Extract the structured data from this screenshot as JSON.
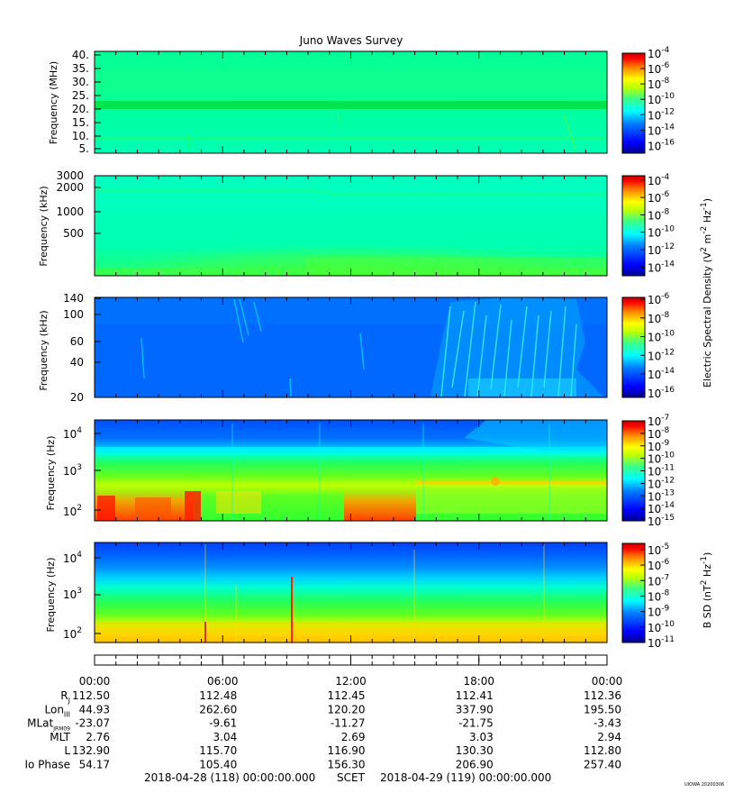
{
  "chart_data": {
    "type": "heatmap",
    "title": "Juno Waves Survey",
    "time_axis": {
      "ticks": [
        "00:00",
        "06:00",
        "12:00",
        "18:00",
        "00:00"
      ],
      "range_hours": [
        0,
        24
      ]
    },
    "panels": [
      {
        "id": "p1",
        "ylabel": "Frequency (MHz)",
        "y_scale": "linear",
        "ylim": [
          3.5,
          41
        ],
        "y_ticks": [
          "40.",
          "35.",
          "30.",
          "25.",
          "20.",
          "15.",
          "10.",
          "5."
        ],
        "colorbar": {
          "tick_exponents": [
            "-4",
            "-6",
            "-8",
            "-10",
            "-12",
            "-14",
            "-16"
          ],
          "range_log10": [
            -17,
            -4
          ]
        }
      },
      {
        "id": "p2",
        "ylabel": "Frequency (kHz)",
        "y_scale": "log",
        "ylim": [
          140,
          3000
        ],
        "y_ticks": [
          "3000",
          "2000",
          "1000",
          "500"
        ],
        "colorbar": {
          "tick_exponents": [
            "-4",
            "-6",
            "-8",
            "-10",
            "-12",
            "-14"
          ],
          "range_log10": [
            -15,
            -3.5
          ]
        }
      },
      {
        "id": "p3",
        "ylabel": "Frequency (kHz)",
        "y_scale": "log",
        "ylim": [
          20,
          140
        ],
        "y_ticks": [
          "140",
          "100",
          "60",
          "40",
          "20"
        ],
        "colorbar": {
          "tick_exponents": [
            "-6",
            "-8",
            "-10",
            "-12",
            "-14",
            "-16"
          ],
          "range_log10": [
            -16.5,
            -5.8
          ]
        }
      },
      {
        "id": "p4",
        "ylabel": "Frequency (Hz)",
        "y_scale": "log",
        "ylim": [
          50,
          20000
        ],
        "y_ticks": [
          {
            "base": "10",
            "exp": "4"
          },
          {
            "base": "10",
            "exp": "3"
          },
          {
            "base": "10",
            "exp": "2"
          }
        ],
        "colorbar": {
          "tick_exponents": [
            "-7",
            "-8",
            "-9",
            "-10",
            "-11",
            "-12",
            "-13",
            "-14",
            "-15"
          ],
          "range_log10": [
            -15,
            -7
          ]
        }
      },
      {
        "id": "p5",
        "ylabel": "Frequency (Hz)",
        "y_scale": "log",
        "ylim": [
          50,
          20000
        ],
        "y_ticks": [
          {
            "base": "10",
            "exp": "4"
          },
          {
            "base": "10",
            "exp": "3"
          },
          {
            "base": "10",
            "exp": "2"
          }
        ],
        "colorbar": {
          "tick_exponents": [
            "-5",
            "-6",
            "-7",
            "-8",
            "-9",
            "-10",
            "-11"
          ],
          "range_log10": [
            -11,
            -4.6
          ]
        }
      }
    ],
    "colorbar_label_electric": {
      "text": "Electric Spectral Density (V",
      "sup1": "2",
      "mid": " m",
      "sup2": "-2",
      "mid2": " Hz",
      "sup3": "-1",
      "end": ")"
    },
    "colorbar_label_magnetic": {
      "text": "B SD (nT",
      "sup1": "2",
      "mid": " Hz",
      "sup2": "-1",
      "end": ")"
    },
    "ephemeris": {
      "rows": [
        {
          "label": "R",
          "sub": "J",
          "values": [
            "112.50",
            "112.48",
            "112.45",
            "112.41",
            "112.36"
          ]
        },
        {
          "label": "Lon",
          "sub": "III",
          "values": [
            "44.93",
            "262.60",
            "120.20",
            "337.90",
            "195.50"
          ]
        },
        {
          "label": "MLat",
          "sub": "JRM09",
          "values": [
            "-23.07",
            "-9.61",
            "-11.27",
            "-21.75",
            "-3.43"
          ]
        },
        {
          "label": "MLT",
          "sub": "",
          "values": [
            "2.76",
            "3.04",
            "2.69",
            "3.03",
            "2.94"
          ]
        },
        {
          "label": "L",
          "sub": "",
          "values": [
            "132.90",
            "115.70",
            "116.90",
            "130.30",
            "112.80"
          ]
        },
        {
          "label": "Io Phase",
          "sub": "",
          "values": [
            "54.17",
            "105.40",
            "156.30",
            "206.90",
            "257.40"
          ]
        }
      ]
    },
    "footer": {
      "start": "2018-04-28 (118) 00:00:00.000",
      "scet": "SCET",
      "end": "2018-04-29 (119) 00:00:00.000"
    },
    "credit": "UIOWA 20200306"
  },
  "colors": {
    "jet": [
      "#00008f",
      "#0000ff",
      "#0080ff",
      "#00ffff",
      "#80ff80",
      "#ffff00",
      "#ff8000",
      "#ff0000",
      "#800000"
    ]
  }
}
